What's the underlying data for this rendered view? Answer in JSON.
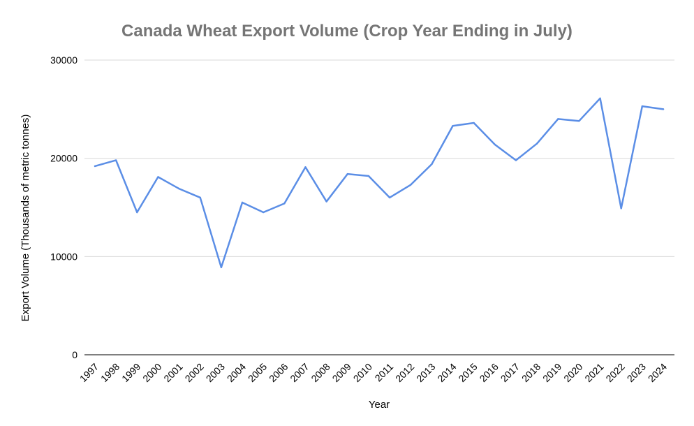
{
  "chart_data": {
    "type": "line",
    "title": "Canada Wheat Export Volume (Crop Year Ending in July)",
    "xlabel": "Year",
    "ylabel": "Export Volume (Thousands of metric tonnes)",
    "ylim": [
      0,
      30000
    ],
    "yticks": [
      "0",
      "10000",
      "20000",
      "30000"
    ],
    "grid": true,
    "categories": [
      "1997",
      "1998",
      "1999",
      "2000",
      "2001",
      "2002",
      "2003",
      "2004",
      "2005",
      "2006",
      "2007",
      "2008",
      "2009",
      "2010",
      "2011",
      "2012",
      "2013",
      "2014",
      "2015",
      "2016",
      "2017",
      "2018",
      "2019",
      "2020",
      "2021",
      "2022",
      "2023",
      "2024"
    ],
    "series": [
      {
        "name": "Export Volume",
        "color": "#5b8ee6",
        "values": [
          19200,
          19800,
          14500,
          18100,
          16900,
          16000,
          8900,
          15500,
          14500,
          15400,
          19100,
          15600,
          18400,
          18200,
          16000,
          17300,
          19400,
          23300,
          23600,
          21400,
          19800,
          21500,
          24000,
          23800,
          26100,
          14900,
          25300,
          25000
        ]
      }
    ]
  }
}
